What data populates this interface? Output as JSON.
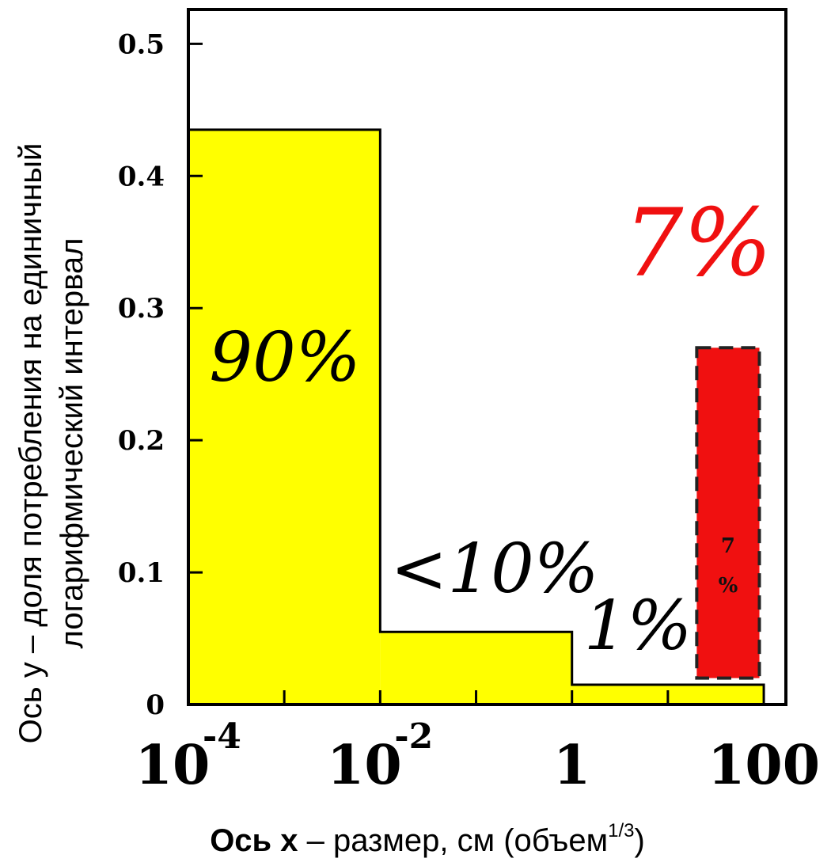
{
  "chart_data": {
    "type": "bar",
    "x_scale": "log",
    "xlim": [
      0.0001,
      100
    ],
    "ylim": [
      0,
      0.52
    ],
    "grid": false,
    "legend": "none",
    "y_ticks": [
      "0",
      "0.1",
      "0.2",
      "0.3",
      "0.4",
      "0.5"
    ],
    "x_ticks": [
      {
        "base": "10",
        "exp": "-4"
      },
      {
        "base": "10",
        "exp": "-2"
      },
      {
        "base": "1",
        "exp": ""
      },
      {
        "base": "100",
        "exp": ""
      }
    ],
    "bins": [
      {
        "x_from": 0.0001,
        "x_to": 0.01,
        "value": 0.435,
        "label": "90%",
        "color": "#ffff00"
      },
      {
        "x_from": 0.01,
        "x_to": 1,
        "value": 0.055,
        "label": "<10%",
        "color": "#ffff00"
      },
      {
        "x_from": 1,
        "x_to": 100,
        "value": 0.015,
        "label": "1%",
        "color": "#ffff00"
      }
    ],
    "highlight_bar": {
      "x_from": 20,
      "x_to": 90,
      "y_from": 0.02,
      "y_to": 0.27,
      "color": "#f01010",
      "inner_label_top": "7",
      "inner_label_bottom": "%",
      "outer_label": "7%"
    },
    "ylabel_line1": "Ось у – доля потребления на единичный",
    "ylabel_line2": "логарифмический  интервал",
    "xlabel_bold": "Ось x",
    "xlabel_rest": " – размер, см (объем",
    "xlabel_sup": "1/3",
    "xlabel_close": ")"
  }
}
